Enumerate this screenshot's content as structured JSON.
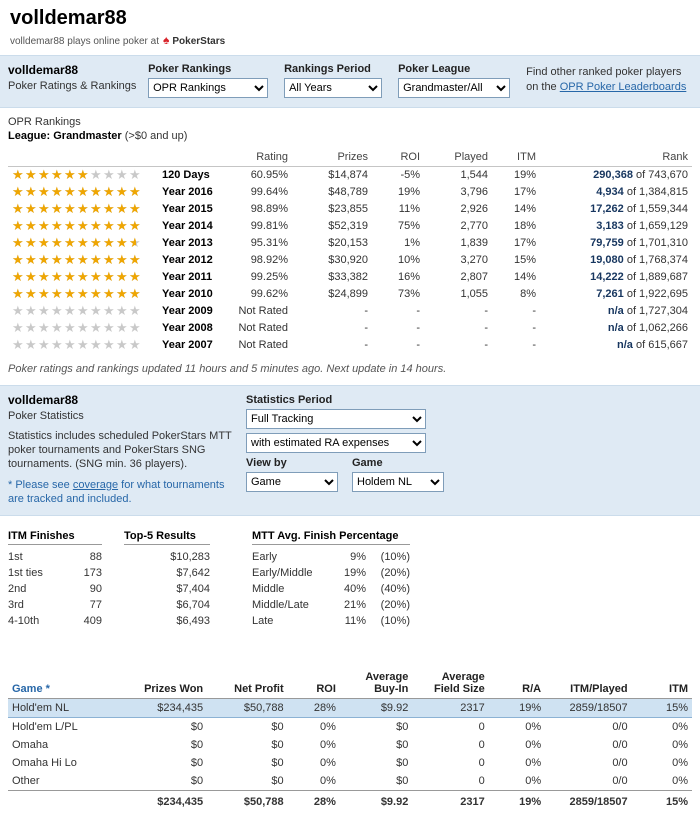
{
  "header": {
    "title": "volldemar88",
    "subtitle": "volldemar88 plays online poker at",
    "site_name": "PokerStars"
  },
  "rankings_panel": {
    "player": "volldemar88",
    "section_label": "Poker Ratings & Rankings",
    "controls": [
      {
        "label": "Poker Rankings",
        "value": "OPR Rankings"
      },
      {
        "label": "Rankings Period",
        "value": "All Years"
      },
      {
        "label": "Poker League",
        "value": "Grandmaster/All"
      }
    ],
    "find_line1": "Find other ranked poker players",
    "find_line2_prefix": "on the",
    "find_link": "OPR Poker Leaderboards"
  },
  "rankings_table": {
    "title": "OPR Rankings",
    "league_label": "League: Grandmaster",
    "league_note": "(>$0 and up)",
    "columns": [
      "Rating",
      "Prizes",
      "ROI",
      "Played",
      "ITM",
      "Rank"
    ],
    "rows": [
      {
        "stars": 6,
        "period": "120 Days",
        "rating": "60.95%",
        "prizes": "$14,874",
        "roi": "-5%",
        "played": "1,544",
        "itm": "19%",
        "rank": "290,368",
        "rank_of": "of 743,670"
      },
      {
        "stars": 10,
        "period": "Year 2016",
        "rating": "99.64%",
        "prizes": "$48,789",
        "roi": "19%",
        "played": "3,796",
        "itm": "17%",
        "rank": "4,934",
        "rank_of": "of 1,384,815"
      },
      {
        "stars": 10,
        "period": "Year 2015",
        "rating": "98.89%",
        "prizes": "$23,855",
        "roi": "11%",
        "played": "2,926",
        "itm": "14%",
        "rank": "17,262",
        "rank_of": "of 1,559,344"
      },
      {
        "stars": 10,
        "period": "Year 2014",
        "rating": "99.81%",
        "prizes": "$52,319",
        "roi": "75%",
        "played": "2,770",
        "itm": "18%",
        "rank": "3,183",
        "rank_of": "of 1,659,129"
      },
      {
        "stars": 9.5,
        "period": "Year 2013",
        "rating": "95.31%",
        "prizes": "$20,153",
        "roi": "1%",
        "played": "1,839",
        "itm": "17%",
        "rank": "79,759",
        "rank_of": "of 1,701,310"
      },
      {
        "stars": 10,
        "period": "Year 2012",
        "rating": "98.92%",
        "prizes": "$30,920",
        "roi": "10%",
        "played": "3,270",
        "itm": "15%",
        "rank": "19,080",
        "rank_of": "of 1,768,374"
      },
      {
        "stars": 10,
        "period": "Year 2011",
        "rating": "99.25%",
        "prizes": "$33,382",
        "roi": "16%",
        "played": "2,807",
        "itm": "14%",
        "rank": "14,222",
        "rank_of": "of 1,889,687"
      },
      {
        "stars": 10,
        "period": "Year 2010",
        "rating": "99.62%",
        "prizes": "$24,899",
        "roi": "73%",
        "played": "1,055",
        "itm": "8%",
        "rank": "7,261",
        "rank_of": "of 1,922,695"
      },
      {
        "stars": 0,
        "period": "Year 2009",
        "rating": "Not Rated",
        "prizes": "-",
        "roi": "-",
        "played": "-",
        "itm": "-",
        "rank": "n/a",
        "rank_of": "of 1,727,304"
      },
      {
        "stars": 0,
        "period": "Year 2008",
        "rating": "Not Rated",
        "prizes": "-",
        "roi": "-",
        "played": "-",
        "itm": "-",
        "rank": "n/a",
        "rank_of": "of 1,062,266"
      },
      {
        "stars": 0,
        "period": "Year 2007",
        "rating": "Not Rated",
        "prizes": "-",
        "roi": "-",
        "played": "-",
        "itm": "-",
        "rank": "n/a",
        "rank_of": "of 615,667"
      }
    ],
    "footer": "Poker ratings and rankings updated 11 hours and 5 minutes ago. Next update in 14 hours."
  },
  "stats_panel": {
    "player": "volldemar88",
    "section_label": "Poker Statistics",
    "description": "Statistics includes scheduled PokerStars MTT poker tournaments and PokerStars SNG tournaments. (SNG min. 36 players).",
    "note_prefix": "* Please see",
    "note_link": "coverage",
    "note_suffix": "for what tournaments are tracked and included.",
    "period_label": "Statistics Period",
    "period_value": "Full Tracking",
    "expenses_value": "with estimated RA expenses",
    "viewby_label": "View by",
    "game_label": "Game",
    "viewby_value": "Game",
    "game_value": "Holdem NL"
  },
  "stats_summary": {
    "itm": {
      "title": "ITM Finishes",
      "rows": [
        {
          "label": "1st",
          "value": "88"
        },
        {
          "label": "1st ties",
          "value": "173"
        },
        {
          "label": "2nd",
          "value": "90"
        },
        {
          "label": "3rd",
          "value": "77"
        },
        {
          "label": "4-10th",
          "value": "409"
        }
      ]
    },
    "top5": {
      "title": "Top-5 Results",
      "values": [
        "$10,283",
        "$7,642",
        "$7,404",
        "$6,704",
        "$6,493"
      ]
    },
    "mtt": {
      "title": "MTT Avg. Finish Percentage",
      "rows": [
        {
          "label": "Early",
          "value": "9%",
          "overall": "(10%)"
        },
        {
          "label": "Early/Middle",
          "value": "19%",
          "overall": "(20%)"
        },
        {
          "label": "Middle",
          "value": "40%",
          "overall": "(40%)"
        },
        {
          "label": "Middle/Late",
          "value": "21%",
          "overall": "(20%)"
        },
        {
          "label": "Late",
          "value": "11%",
          "overall": "(10%)"
        }
      ]
    }
  },
  "games_table": {
    "columns": [
      "Game *",
      "Prizes Won",
      "Net Profit",
      "ROI",
      "Average\nBuy-In",
      "Average\nField Size",
      "R/A",
      "ITM/Played",
      "ITM"
    ],
    "rows": [
      {
        "game": "Hold'em NL",
        "prizes_won": "$234,435",
        "net_profit": "$50,788",
        "roi": "28%",
        "avg_buyin": "$9.92",
        "avg_field": "2317",
        "ra": "19%",
        "itm_played": "2859/18507",
        "itm": "15%",
        "highlighted": true
      },
      {
        "game": "Hold'em L/PL",
        "prizes_won": "$0",
        "net_profit": "$0",
        "roi": "0%",
        "avg_buyin": "$0",
        "avg_field": "0",
        "ra": "0%",
        "itm_played": "0/0",
        "itm": "0%",
        "highlighted": false
      },
      {
        "game": "Omaha",
        "prizes_won": "$0",
        "net_profit": "$0",
        "roi": "0%",
        "avg_buyin": "$0",
        "avg_field": "0",
        "ra": "0%",
        "itm_played": "0/0",
        "itm": "0%",
        "highlighted": false
      },
      {
        "game": "Omaha Hi Lo",
        "prizes_won": "$0",
        "net_profit": "$0",
        "roi": "0%",
        "avg_buyin": "$0",
        "avg_field": "0",
        "ra": "0%",
        "itm_played": "0/0",
        "itm": "0%",
        "highlighted": false
      },
      {
        "game": "Other",
        "prizes_won": "$0",
        "net_profit": "$0",
        "roi": "0%",
        "avg_buyin": "$0",
        "avg_field": "0",
        "ra": "0%",
        "itm_played": "0/0",
        "itm": "0%",
        "highlighted": false
      }
    ],
    "total": {
      "game": "",
      "prizes_won": "$234,435",
      "net_profit": "$50,788",
      "roi": "28%",
      "avg_buyin": "$9.92",
      "avg_field": "2317",
      "ra": "19%",
      "itm_played": "2859/18507",
      "itm": "15%"
    }
  },
  "colors": {
    "link": "#2767a8",
    "star_gold": "#efa602",
    "star_empty": "#c9c9c9",
    "panel_bg": "#dfeaf4",
    "highlight_row": "#cfe2f2",
    "brand_red": "#d8232a",
    "rank_number": "#17365f"
  }
}
